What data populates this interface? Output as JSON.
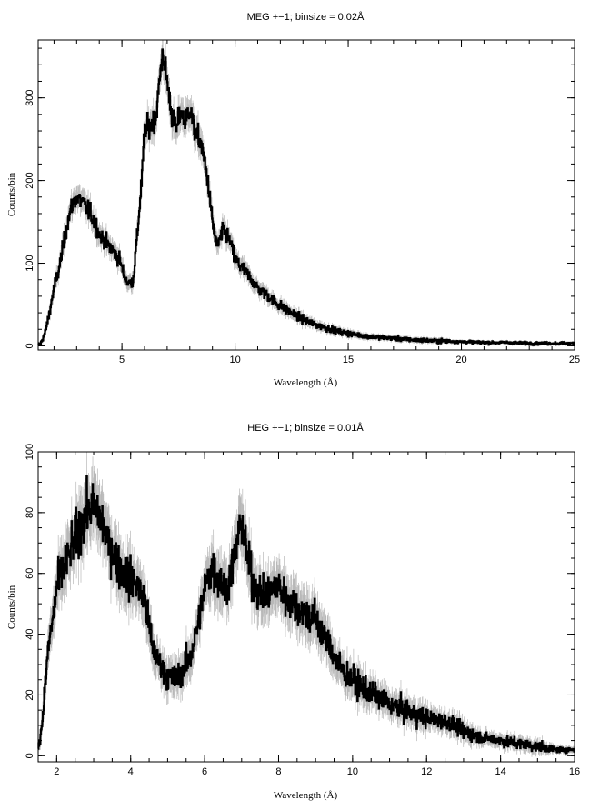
{
  "chart_data": [
    {
      "type": "line",
      "title": "MEG +−1; binsize = 0.02Å",
      "xlabel": "Wavelength (Å)",
      "ylabel": "Counts/bin",
      "xlim": [
        1.3,
        25
      ],
      "ylim": [
        -5,
        370
      ],
      "xticks": [
        5,
        10,
        15,
        20,
        25
      ],
      "yticks": [
        0,
        100,
        200,
        300
      ],
      "grid": false,
      "series": [
        {
          "x": [
            1.4,
            1.6,
            1.8,
            2.0,
            2.2,
            2.4,
            2.6,
            2.8,
            3.0,
            3.2,
            3.5,
            3.8,
            4.0,
            4.3,
            4.6,
            4.9,
            5.1,
            5.3,
            5.5,
            5.7,
            5.9,
            6.0,
            6.2,
            6.5,
            6.7,
            6.8,
            7.0,
            7.2,
            7.4,
            7.6,
            7.8,
            8.0,
            8.2,
            8.5,
            8.8,
            9.0,
            9.2,
            9.5,
            9.8,
            10.0,
            10.3,
            10.6,
            11.0,
            11.4,
            11.8,
            12.2,
            12.6,
            13.0,
            13.5,
            14.0,
            14.5,
            15.0,
            16.0,
            17.0,
            18.0,
            19.0,
            20.0,
            21.0,
            22.0,
            23.0,
            24.0,
            25.0
          ],
          "y": [
            2,
            15,
            40,
            70,
            90,
            120,
            150,
            170,
            180,
            175,
            165,
            150,
            135,
            125,
            115,
            105,
            85,
            75,
            80,
            140,
            210,
            260,
            265,
            275,
            330,
            355,
            320,
            280,
            260,
            285,
            270,
            290,
            260,
            245,
            200,
            150,
            120,
            140,
            125,
            105,
            95,
            85,
            70,
            62,
            52,
            45,
            38,
            32,
            26,
            22,
            18,
            15,
            11,
            9,
            7,
            6,
            5,
            4,
            4,
            3,
            3,
            3
          ],
          "errors": [
            2,
            4,
            7,
            9,
            10,
            11,
            12,
            13,
            13,
            13,
            13,
            12,
            12,
            11,
            11,
            10,
            9,
            9,
            9,
            12,
            15,
            16,
            16,
            17,
            18,
            19,
            18,
            17,
            16,
            17,
            16,
            17,
            16,
            16,
            14,
            12,
            11,
            12,
            11,
            10,
            10,
            9,
            8,
            8,
            7,
            7,
            6,
            6,
            5,
            5,
            4,
            4,
            3,
            3,
            3,
            3,
            2,
            2,
            2,
            2,
            2,
            2
          ]
        }
      ]
    },
    {
      "type": "line",
      "title": "HEG +−1; binsize = 0.01Å",
      "xlabel": "Wavelength (Å)",
      "ylabel": "Counts/bin",
      "xlim": [
        1.5,
        16
      ],
      "ylim": [
        -2,
        100
      ],
      "xticks": [
        2,
        4,
        6,
        8,
        10,
        12,
        14,
        16
      ],
      "yticks": [
        0,
        20,
        40,
        60,
        80,
        100
      ],
      "grid": false,
      "series": [
        {
          "x": [
            1.5,
            1.6,
            1.7,
            1.8,
            1.9,
            2.0,
            2.2,
            2.4,
            2.6,
            2.8,
            3.0,
            3.2,
            3.4,
            3.6,
            3.8,
            4.0,
            4.2,
            4.4,
            4.6,
            4.8,
            5.0,
            5.2,
            5.4,
            5.6,
            5.8,
            6.0,
            6.2,
            6.4,
            6.6,
            6.8,
            7.0,
            7.2,
            7.4,
            7.6,
            7.8,
            8.0,
            8.2,
            8.4,
            8.6,
            8.8,
            9.0,
            9.2,
            9.4,
            9.6,
            9.8,
            10.0,
            10.3,
            10.6,
            11.0,
            11.4,
            11.8,
            12.2,
            12.6,
            13.0,
            13.5,
            14.0,
            14.5,
            15.0,
            15.5,
            16.0
          ],
          "y": [
            2,
            10,
            25,
            38,
            45,
            55,
            62,
            68,
            75,
            80,
            82,
            78,
            70,
            65,
            60,
            58,
            56,
            50,
            35,
            30,
            26,
            25,
            28,
            32,
            42,
            55,
            62,
            58,
            55,
            65,
            78,
            62,
            55,
            52,
            54,
            56,
            52,
            50,
            48,
            46,
            45,
            40,
            36,
            30,
            27,
            25,
            22,
            20,
            17,
            15,
            13,
            12,
            11,
            8,
            6,
            5,
            4,
            3,
            2,
            2
          ],
          "errors": [
            1,
            3,
            5,
            6,
            7,
            7,
            8,
            8,
            9,
            9,
            9,
            9,
            8,
            8,
            8,
            8,
            7,
            7,
            6,
            5,
            5,
            5,
            5,
            6,
            6,
            7,
            8,
            8,
            7,
            8,
            9,
            8,
            7,
            7,
            7,
            7,
            7,
            7,
            7,
            7,
            7,
            6,
            6,
            5,
            5,
            5,
            5,
            4,
            4,
            4,
            4,
            3,
            3,
            3,
            2,
            2,
            2,
            2,
            1,
            1
          ]
        }
      ]
    }
  ]
}
